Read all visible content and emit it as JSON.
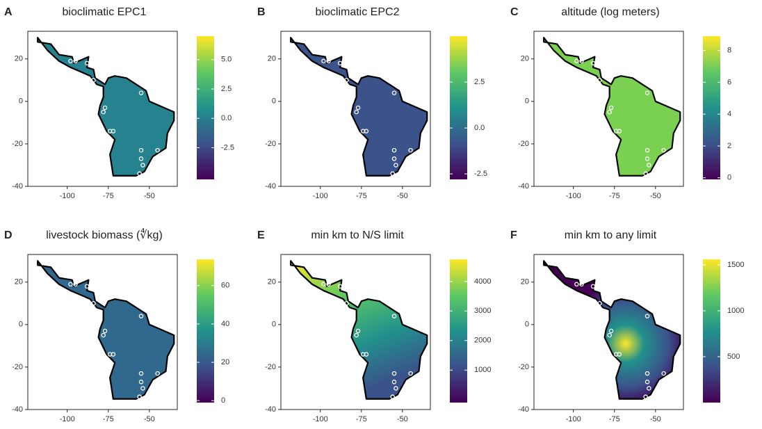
{
  "chart_data": [
    {
      "type": "map",
      "panel_label": "A",
      "title": "bioclimatic EPC1",
      "colormap": "viridis",
      "xlim": [
        -124,
        -33
      ],
      "ylim": [
        -40,
        33
      ],
      "xticks": [
        -100,
        -75,
        -50
      ],
      "yticks": [
        20,
        0,
        -20,
        -40
      ],
      "clim": [
        -5.2,
        7.0
      ],
      "cticks": [
        {
          "value": 5,
          "label": "5.0"
        },
        {
          "value": 2.5,
          "label": "2.5"
        },
        {
          "value": 0,
          "label": "0.0"
        },
        {
          "value": -2.5,
          "label": "-2.5"
        }
      ]
    },
    {
      "type": "map",
      "panel_label": "B",
      "title": "bioclimatic EPC2",
      "colormap": "viridis",
      "xlim": [
        -124,
        -33
      ],
      "ylim": [
        -40,
        33
      ],
      "xticks": [
        -100,
        -75,
        -50
      ],
      "yticks": [
        20,
        0,
        -20,
        -40
      ],
      "clim": [
        -2.8,
        5.0
      ],
      "cticks": [
        {
          "value": 2.5,
          "label": "2.5"
        },
        {
          "value": 0,
          "label": "0.0"
        },
        {
          "value": -2.5,
          "label": "-2.5"
        }
      ]
    },
    {
      "type": "map",
      "panel_label": "C",
      "title": "altitude (log meters)",
      "colormap": "viridis",
      "xlim": [
        -124,
        -33
      ],
      "ylim": [
        -40,
        33
      ],
      "xticks": [
        -100,
        -75,
        -50
      ],
      "yticks": [
        20,
        0,
        -20,
        -40
      ],
      "clim": [
        -0.1,
        8.9
      ],
      "cticks": [
        8,
        6,
        4,
        2,
        0
      ]
    },
    {
      "type": "map",
      "panel_label": "D",
      "title": "livestock biomass (∜kg)",
      "colormap": "viridis",
      "xlim": [
        -124,
        -33
      ],
      "ylim": [
        -40,
        33
      ],
      "xticks": [
        -100,
        -75,
        -50
      ],
      "yticks": [
        20,
        0,
        -20,
        -40
      ],
      "clim": [
        -1,
        73.7
      ],
      "cticks": [
        60,
        40,
        20,
        0
      ]
    },
    {
      "type": "map",
      "panel_label": "E",
      "title": "min km to N/S limit",
      "colormap": "viridis",
      "xlim": [
        -124,
        -33
      ],
      "ylim": [
        -40,
        33
      ],
      "xticks": [
        -100,
        -75,
        -50
      ],
      "yticks": [
        20,
        0,
        -20,
        -40
      ],
      "clim": [
        -100,
        4750
      ],
      "cticks": [
        4000,
        3000,
        2000,
        1000
      ]
    },
    {
      "type": "map",
      "panel_label": "F",
      "title": "min km to any limit",
      "colormap": "viridis",
      "xlim": [
        -124,
        -33
      ],
      "ylim": [
        -40,
        33
      ],
      "xticks": [
        -100,
        -75,
        -50
      ],
      "yticks": [
        20,
        0,
        -20,
        -40
      ],
      "clim": [
        0,
        1560
      ],
      "cticks": [
        1500,
        1000,
        500
      ]
    }
  ]
}
